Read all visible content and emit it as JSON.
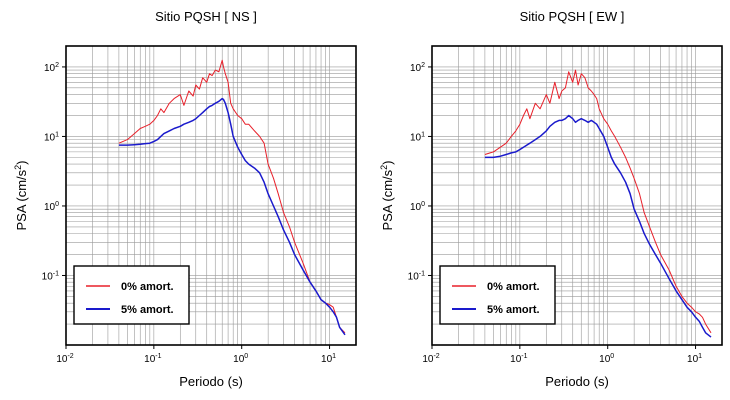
{
  "chart_data": [
    {
      "type": "line",
      "title": "Sitio PQSH [ NS ]",
      "xlabel": "Periodo (s)",
      "ylabel_base": "PSA (cm/s",
      "ylabel_exp": "2",
      "ylabel_close": ")",
      "xscale": "log",
      "yscale": "log",
      "xlim": [
        0.01,
        20
      ],
      "ylim": [
        0.01,
        200
      ],
      "x_tick_labels": [
        {
          "value": 0.01,
          "base": "10",
          "exp": "-2"
        },
        {
          "value": 0.1,
          "base": "10",
          "exp": "-1"
        },
        {
          "value": 1,
          "base": "10",
          "exp": "0"
        },
        {
          "value": 10,
          "base": "10",
          "exp": "1"
        }
      ],
      "y_tick_labels": [
        {
          "value": 0.1,
          "base": "10",
          "exp": "-1"
        },
        {
          "value": 1,
          "base": "10",
          "exp": "0"
        },
        {
          "value": 10,
          "base": "10",
          "exp": "1"
        },
        {
          "value": 100,
          "base": "10",
          "exp": "2"
        }
      ],
      "grid": true,
      "legend_position": "bottom-left",
      "series": [
        {
          "name": "0% amort.",
          "color": "#e8202a",
          "x": [
            0.04,
            0.05,
            0.06,
            0.07,
            0.08,
            0.09,
            0.1,
            0.11,
            0.12,
            0.13,
            0.15,
            0.17,
            0.2,
            0.22,
            0.25,
            0.28,
            0.3,
            0.33,
            0.36,
            0.4,
            0.43,
            0.46,
            0.5,
            0.55,
            0.6,
            0.62,
            0.65,
            0.7,
            0.75,
            0.8,
            0.9,
            1.0,
            1.1,
            1.2,
            1.4,
            1.6,
            1.8,
            2.0,
            2.3,
            2.6,
            3.0,
            3.5,
            4.0,
            5.0,
            6.0,
            7.0,
            8.0,
            9.0,
            10.0,
            11.0,
            12.0,
            13.0,
            15.0
          ],
          "y": [
            8,
            9,
            11,
            13,
            14,
            15,
            17,
            20,
            25,
            22,
            30,
            35,
            40,
            28,
            45,
            38,
            55,
            48,
            70,
            60,
            80,
            75,
            90,
            85,
            125,
            100,
            80,
            60,
            30,
            25,
            20,
            18,
            15,
            15,
            12,
            10,
            8,
            4,
            2.5,
            1.5,
            0.8,
            0.5,
            0.3,
            0.15,
            0.08,
            0.06,
            0.045,
            0.04,
            0.038,
            0.035,
            0.025,
            0.018,
            0.015
          ]
        },
        {
          "name": "5% amort.",
          "color": "#1a1acc",
          "x": [
            0.04,
            0.05,
            0.06,
            0.07,
            0.08,
            0.09,
            0.1,
            0.11,
            0.12,
            0.13,
            0.15,
            0.17,
            0.2,
            0.22,
            0.25,
            0.28,
            0.3,
            0.33,
            0.36,
            0.4,
            0.43,
            0.46,
            0.5,
            0.55,
            0.6,
            0.62,
            0.65,
            0.7,
            0.75,
            0.8,
            0.9,
            1.0,
            1.1,
            1.2,
            1.4,
            1.6,
            1.8,
            2.0,
            2.3,
            2.6,
            3.0,
            3.5,
            4.0,
            5.0,
            6.0,
            7.0,
            8.0,
            9.0,
            10.0,
            11.0,
            12.0,
            13.0,
            15.0
          ],
          "y": [
            7.5,
            7.5,
            7.6,
            7.7,
            7.9,
            8,
            8.5,
            9,
            10,
            11,
            12,
            13,
            14,
            15,
            16,
            17,
            18,
            20,
            22,
            25,
            27,
            28,
            30,
            32,
            35,
            34,
            30,
            22,
            15,
            10,
            7,
            5.5,
            4.5,
            4,
            3.5,
            3,
            2.2,
            1.5,
            1.0,
            0.7,
            0.45,
            0.3,
            0.2,
            0.12,
            0.08,
            0.06,
            0.045,
            0.04,
            0.035,
            0.03,
            0.025,
            0.018,
            0.014
          ]
        }
      ]
    },
    {
      "type": "line",
      "title": "Sitio PQSH [ EW ]",
      "xlabel": "Periodo (s)",
      "ylabel_base": "PSA (cm/s",
      "ylabel_exp": "2",
      "ylabel_close": ")",
      "xscale": "log",
      "yscale": "log",
      "xlim": [
        0.01,
        20
      ],
      "ylim": [
        0.01,
        200
      ],
      "x_tick_labels": [
        {
          "value": 0.01,
          "base": "10",
          "exp": "-2"
        },
        {
          "value": 0.1,
          "base": "10",
          "exp": "-1"
        },
        {
          "value": 1,
          "base": "10",
          "exp": "0"
        },
        {
          "value": 10,
          "base": "10",
          "exp": "1"
        }
      ],
      "y_tick_labels": [
        {
          "value": 0.1,
          "base": "10",
          "exp": "-1"
        },
        {
          "value": 1,
          "base": "10",
          "exp": "0"
        },
        {
          "value": 10,
          "base": "10",
          "exp": "1"
        },
        {
          "value": 100,
          "base": "10",
          "exp": "2"
        }
      ],
      "grid": true,
      "legend_position": "bottom-left",
      "series": [
        {
          "name": "0% amort.",
          "color": "#e8202a",
          "x": [
            0.04,
            0.05,
            0.06,
            0.07,
            0.08,
            0.09,
            0.1,
            0.11,
            0.12,
            0.13,
            0.15,
            0.17,
            0.2,
            0.22,
            0.25,
            0.28,
            0.3,
            0.33,
            0.36,
            0.4,
            0.43,
            0.46,
            0.5,
            0.55,
            0.6,
            0.65,
            0.7,
            0.75,
            0.8,
            0.9,
            1.0,
            1.1,
            1.2,
            1.4,
            1.6,
            1.8,
            2.0,
            2.3,
            2.6,
            3.0,
            3.5,
            4.0,
            5.0,
            6.0,
            7.0,
            8.0,
            9.0,
            10.0,
            11.0,
            12.0,
            13.0,
            15.0
          ],
          "y": [
            5.5,
            6,
            7,
            8,
            10,
            12,
            15,
            20,
            25,
            18,
            30,
            25,
            40,
            30,
            60,
            35,
            45,
            50,
            85,
            60,
            90,
            55,
            80,
            70,
            50,
            45,
            40,
            35,
            25,
            18,
            15,
            12,
            10,
            7,
            5,
            3.5,
            2.5,
            1.5,
            0.8,
            0.5,
            0.3,
            0.2,
            0.12,
            0.07,
            0.05,
            0.04,
            0.035,
            0.03,
            0.028,
            0.025,
            0.02,
            0.015
          ]
        },
        {
          "name": "5% amort.",
          "color": "#1a1acc",
          "x": [
            0.04,
            0.05,
            0.06,
            0.07,
            0.08,
            0.09,
            0.1,
            0.11,
            0.12,
            0.13,
            0.15,
            0.17,
            0.2,
            0.22,
            0.25,
            0.28,
            0.3,
            0.33,
            0.36,
            0.4,
            0.43,
            0.46,
            0.5,
            0.55,
            0.6,
            0.65,
            0.7,
            0.75,
            0.8,
            0.9,
            1.0,
            1.1,
            1.2,
            1.4,
            1.6,
            1.8,
            2.0,
            2.3,
            2.6,
            3.0,
            3.5,
            4.0,
            5.0,
            6.0,
            7.0,
            8.0,
            9.0,
            10.0,
            11.0,
            12.0,
            13.0,
            15.0
          ],
          "y": [
            5,
            5,
            5.2,
            5.5,
            5.8,
            6,
            6.5,
            7,
            7.5,
            8,
            9,
            10,
            12,
            14,
            16,
            17,
            17,
            18,
            20,
            18,
            16,
            17,
            18,
            17,
            16,
            17,
            16,
            15,
            13,
            10,
            7,
            5,
            4,
            3,
            2.2,
            1.5,
            0.9,
            0.6,
            0.4,
            0.28,
            0.2,
            0.15,
            0.09,
            0.06,
            0.045,
            0.035,
            0.03,
            0.025,
            0.022,
            0.018,
            0.015,
            0.013
          ]
        }
      ]
    }
  ]
}
